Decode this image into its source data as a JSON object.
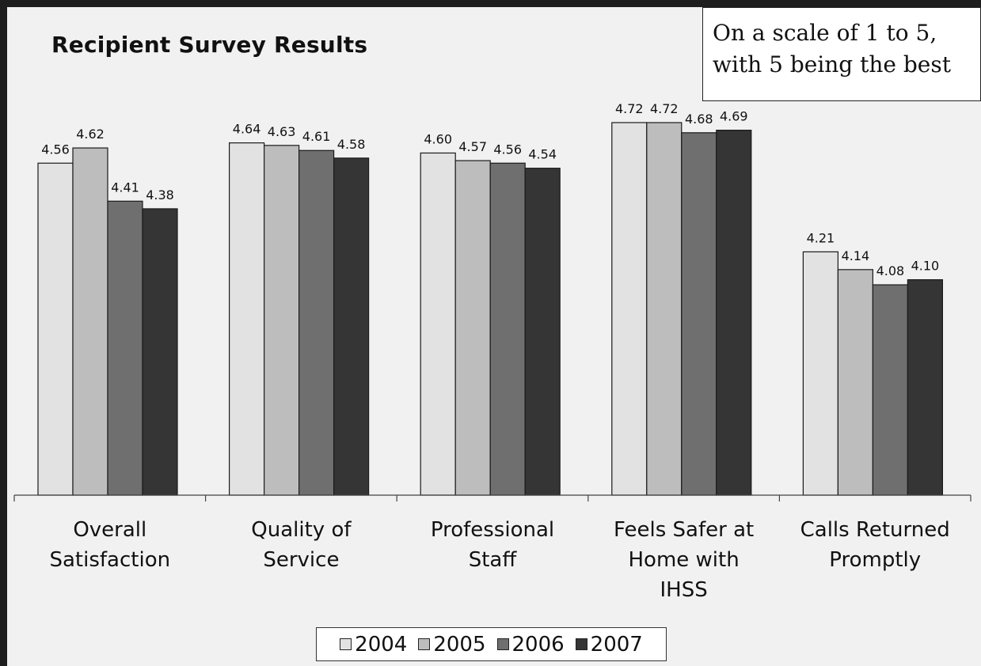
{
  "note": {
    "line1": "On a scale of 1 to 5,",
    "line2": "with 5 being the best"
  },
  "chart_data": {
    "type": "bar",
    "title": "Recipient Survey Results",
    "categories": [
      [
        "Overall",
        "Satisfaction"
      ],
      [
        "Quality of",
        "Service"
      ],
      [
        "Professional",
        "Staff"
      ],
      [
        "Feels Safer at",
        "Home with",
        "IHSS"
      ],
      [
        "Calls Returned",
        "Promptly"
      ]
    ],
    "series": [
      {
        "name": "2004",
        "color": "#e2e2e2",
        "values": [
          4.56,
          4.64,
          4.6,
          4.72,
          4.21
        ]
      },
      {
        "name": "2005",
        "color": "#bdbdbd",
        "values": [
          4.62,
          4.63,
          4.57,
          4.72,
          4.14
        ]
      },
      {
        "name": "2006",
        "color": "#6f6f6f",
        "values": [
          4.41,
          4.61,
          4.56,
          4.68,
          4.08
        ]
      },
      {
        "name": "2007",
        "color": "#353535",
        "values": [
          4.38,
          4.58,
          4.54,
          4.69,
          4.1
        ]
      }
    ],
    "value_labels": [
      [
        "4.56",
        "4.64",
        "4.60",
        "4.72",
        "4.21"
      ],
      [
        "4.62",
        "4.63",
        "4.57",
        "4.72",
        "4.14"
      ],
      [
        "4.41",
        "4.61",
        "4.56",
        "4.68",
        "4.08"
      ],
      [
        "4.38",
        "4.58",
        "4.54",
        "4.69",
        "4.10"
      ]
    ],
    "ylim": [
      3.25,
      4.85
    ],
    "xlabel": "",
    "ylabel": "",
    "grid": false,
    "legend_position": "bottom"
  }
}
